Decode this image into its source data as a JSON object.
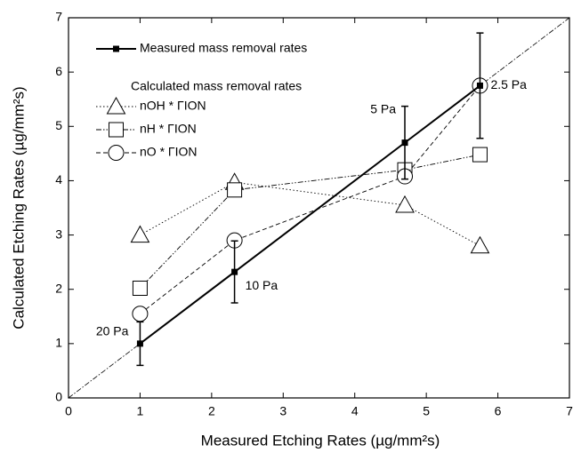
{
  "chart_data": {
    "type": "line",
    "x_label": "Measured Etching Rates (µg/mm²s)",
    "y_label": "Calculated Etching Rates (µg/mm²s)",
    "xlim": [
      0,
      7
    ],
    "ylim": [
      0,
      7
    ],
    "xticks": [
      0,
      1,
      2,
      3,
      4,
      5,
      6,
      7
    ],
    "yticks": [
      0,
      1,
      2,
      3,
      4,
      5,
      6,
      7
    ],
    "legend_subtitle": "Calculated mass removal rates",
    "annotations": [
      "20 Pa",
      "10 Pa",
      "5 Pa",
      "2.5 Pa"
    ],
    "series": [
      {
        "name": "Measured mass removal rates",
        "color": "#000000",
        "marker": "filled-square",
        "dash": "solid",
        "x": [
          1,
          2.32,
          4.7,
          5.75
        ],
        "values": [
          1.0,
          2.32,
          4.7,
          5.75
        ],
        "errors": [
          0.4,
          0.57,
          0.67,
          0.97
        ]
      },
      {
        "name": "nOH * ΓION",
        "color": "#000000",
        "marker": "triangle",
        "dash": "dotted",
        "x": [
          1,
          2.32,
          4.7,
          5.75
        ],
        "values": [
          3.0,
          3.97,
          3.55,
          2.8
        ]
      },
      {
        "name": "nH * ΓION",
        "color": "#000000",
        "marker": "square",
        "dash": "dash-dot-dot",
        "x": [
          1,
          2.32,
          4.7,
          5.75
        ],
        "values": [
          2.02,
          3.83,
          4.2,
          4.48
        ]
      },
      {
        "name": "nO * ΓION",
        "color": "#000000",
        "marker": "circle",
        "dash": "dashed",
        "x": [
          1,
          2.32,
          4.7,
          5.75
        ],
        "values": [
          1.55,
          2.9,
          4.08,
          5.75
        ]
      }
    ]
  }
}
